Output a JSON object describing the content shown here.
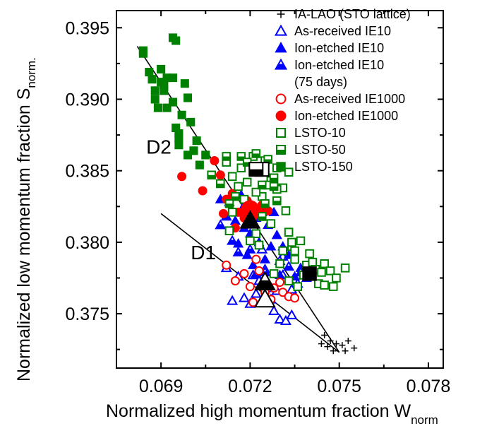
{
  "chart_data": {
    "type": "scatter",
    "xlabel": "Normalized high momentum fraction W",
    "xlabel_sub": "norm",
    "ylabel": "Normalized low momentum fraction S",
    "ylabel_sub": "norm.",
    "xlim": [
      0.0675,
      0.0785
    ],
    "ylim": [
      0.3712,
      0.3962
    ],
    "xticks": [
      0.069,
      0.072,
      0.075,
      0.078
    ],
    "xtick_labels": [
      "0.069",
      "0.072",
      "0.075",
      "0.078"
    ],
    "yticks": [
      0.375,
      0.38,
      0.385,
      0.39,
      0.395
    ],
    "ytick_labels": [
      "0.375",
      "0.380",
      "0.385",
      "0.390",
      "0.395"
    ],
    "legend_position": "top-right",
    "series": [
      {
        "name": "IA-LAO (STO lattice)",
        "marker": "plus",
        "color": "#000000",
        "points": [
          [
            0.0745,
            0.3735
          ],
          [
            0.0747,
            0.3731
          ],
          [
            0.0744,
            0.3729
          ],
          [
            0.0746,
            0.3727
          ],
          [
            0.0749,
            0.3729
          ],
          [
            0.0751,
            0.3728
          ],
          [
            0.0753,
            0.3731
          ],
          [
            0.0755,
            0.3726
          ],
          [
            0.0748,
            0.3724
          ],
          [
            0.0752,
            0.3724
          ]
        ]
      },
      {
        "name": "As-received IE10",
        "marker": "triangle-open",
        "color": "#0000ff",
        "points": [
          [
            0.0716,
            0.3776
          ],
          [
            0.0718,
            0.3761
          ],
          [
            0.072,
            0.3757
          ],
          [
            0.0721,
            0.3777
          ],
          [
            0.0722,
            0.3764
          ],
          [
            0.0723,
            0.3773
          ],
          [
            0.0725,
            0.3781
          ],
          [
            0.0726,
            0.3768
          ],
          [
            0.0727,
            0.376
          ],
          [
            0.0728,
            0.3752
          ],
          [
            0.0729,
            0.3766
          ],
          [
            0.073,
            0.3746
          ],
          [
            0.0731,
            0.3777
          ],
          [
            0.0732,
            0.3745
          ],
          [
            0.0734,
            0.3767
          ],
          [
            0.0734,
            0.3749
          ],
          [
            0.0736,
            0.3771
          ],
          [
            0.0712,
            0.3782
          ],
          [
            0.0724,
            0.3795
          ],
          [
            0.0731,
            0.379
          ],
          [
            0.0714,
            0.3759
          ]
        ]
      },
      {
        "name": "Ion-etched IE10",
        "marker": "triangle-filled",
        "color": "#0000ff",
        "points": [
          [
            0.0713,
            0.3828
          ],
          [
            0.0715,
            0.3815
          ],
          [
            0.0716,
            0.3799
          ],
          [
            0.0717,
            0.3833
          ],
          [
            0.0718,
            0.381
          ],
          [
            0.0719,
            0.3791
          ],
          [
            0.072,
            0.3806
          ],
          [
            0.0722,
            0.3817
          ],
          [
            0.0723,
            0.38
          ],
          [
            0.0724,
            0.3821
          ],
          [
            0.0725,
            0.3788
          ],
          [
            0.0726,
            0.3812
          ],
          [
            0.0727,
            0.3797
          ],
          [
            0.0728,
            0.3821
          ],
          [
            0.0729,
            0.3805
          ],
          [
            0.0731,
            0.3797
          ],
          [
            0.0733,
            0.3791
          ],
          [
            0.0735,
            0.3776
          ],
          [
            0.0737,
            0.3782
          ],
          [
            0.0739,
            0.3775
          ],
          [
            0.071,
            0.383
          ],
          [
            0.0721,
            0.3784
          ],
          [
            0.073,
            0.3777
          ],
          [
            0.0718,
            0.3826
          ]
        ]
      },
      {
        "name": "Ion-etched IE10 (75 days)",
        "marker": "triangle-half",
        "color": "#0000ff",
        "points": [
          [
            0.071,
            0.3812
          ],
          [
            0.0712,
            0.3818
          ],
          [
            0.0714,
            0.3801
          ],
          [
            0.0716,
            0.3793
          ],
          [
            0.072,
            0.3795
          ],
          [
            0.0722,
            0.3778
          ],
          [
            0.0725,
            0.3779
          ],
          [
            0.073,
            0.3787
          ],
          [
            0.0733,
            0.3783
          ],
          [
            0.0737,
            0.3779
          ]
        ]
      },
      {
        "name": "As-received IE1000",
        "marker": "circle-open",
        "color": "#ff0000",
        "points": [
          [
            0.0712,
            0.3784
          ],
          [
            0.0715,
            0.3773
          ],
          [
            0.0718,
            0.3778
          ],
          [
            0.072,
            0.3769
          ],
          [
            0.0721,
            0.3758
          ],
          [
            0.0722,
            0.3788
          ],
          [
            0.0723,
            0.378
          ],
          [
            0.0725,
            0.3765
          ],
          [
            0.0727,
            0.376
          ],
          [
            0.0728,
            0.3768
          ],
          [
            0.073,
            0.3772
          ],
          [
            0.0731,
            0.3765
          ],
          [
            0.0733,
            0.3762
          ],
          [
            0.0735,
            0.3761
          ]
        ]
      },
      {
        "name": "Ion-etched IE1000",
        "marker": "circle-filled",
        "color": "#ff0000",
        "points": [
          [
            0.0697,
            0.3846
          ],
          [
            0.0704,
            0.3836
          ],
          [
            0.0708,
            0.3857
          ],
          [
            0.071,
            0.3847
          ],
          [
            0.0712,
            0.383
          ],
          [
            0.0714,
            0.3834
          ],
          [
            0.0716,
            0.3821
          ],
          [
            0.0718,
            0.3817
          ],
          [
            0.0719,
            0.3829
          ],
          [
            0.0721,
            0.3818
          ],
          [
            0.0723,
            0.3821
          ],
          [
            0.0724,
            0.3826
          ],
          [
            0.0726,
            0.3822
          ],
          [
            0.0715,
            0.381
          ],
          [
            0.0711,
            0.382
          ]
        ]
      },
      {
        "name": "LSTO-10",
        "marker": "square-open",
        "color": "#008000",
        "points": [
          [
            0.0712,
            0.3856
          ],
          [
            0.0714,
            0.3821
          ],
          [
            0.0717,
            0.3852
          ],
          [
            0.0719,
            0.3842
          ],
          [
            0.0721,
            0.386
          ],
          [
            0.0723,
            0.3849
          ],
          [
            0.0725,
            0.3857
          ],
          [
            0.0727,
            0.3843
          ],
          [
            0.0729,
            0.3852
          ],
          [
            0.0731,
            0.3838
          ],
          [
            0.0732,
            0.3822
          ],
          [
            0.0733,
            0.3807
          ],
          [
            0.0734,
            0.3797
          ],
          [
            0.0735,
            0.3788
          ],
          [
            0.0737,
            0.3801
          ],
          [
            0.0738,
            0.3777
          ],
          [
            0.0739,
            0.3784
          ],
          [
            0.074,
            0.3792
          ],
          [
            0.0741,
            0.3786
          ],
          [
            0.0742,
            0.3781
          ],
          [
            0.0743,
            0.3771
          ],
          [
            0.0744,
            0.3779
          ],
          [
            0.0745,
            0.3785
          ],
          [
            0.0747,
            0.378
          ],
          [
            0.0749,
            0.3775
          ],
          [
            0.0752,
            0.3782
          ],
          [
            0.0736,
            0.3769
          ],
          [
            0.0733,
            0.3773
          ],
          [
            0.073,
            0.3785
          ],
          [
            0.0728,
            0.3778
          ],
          [
            0.0726,
            0.384
          ],
          [
            0.0724,
            0.3832
          ],
          [
            0.0716,
            0.3839
          ],
          [
            0.0713,
            0.3808
          ],
          [
            0.0718,
            0.383
          ],
          [
            0.0722,
            0.3806
          ],
          [
            0.0727,
            0.3813
          ],
          [
            0.0731,
            0.3794
          ],
          [
            0.0734,
            0.38
          ],
          [
            0.0735,
            0.3794
          ],
          [
            0.0745,
            0.377
          ],
          [
            0.0748,
            0.3769
          ],
          [
            0.0714,
            0.3846
          ],
          [
            0.0722,
            0.3835
          ],
          [
            0.0729,
            0.3837
          ],
          [
            0.0733,
            0.3849
          ],
          [
            0.0723,
            0.3798
          ],
          [
            0.072,
            0.3801
          ]
        ]
      },
      {
        "name": "LSTO-50",
        "marker": "square-half",
        "color": "#008000",
        "points": [
          [
            0.0707,
            0.3847
          ],
          [
            0.071,
            0.3841
          ],
          [
            0.0712,
            0.386
          ],
          [
            0.0715,
            0.3832
          ],
          [
            0.0717,
            0.386
          ],
          [
            0.0719,
            0.3856
          ],
          [
            0.0721,
            0.385
          ],
          [
            0.0722,
            0.3862
          ],
          [
            0.0724,
            0.384
          ],
          [
            0.0726,
            0.3858
          ],
          [
            0.0728,
            0.3845
          ],
          [
            0.0725,
            0.3827
          ],
          [
            0.0713,
            0.3827
          ],
          [
            0.0729,
            0.3829
          ],
          [
            0.0724,
            0.3818
          ],
          [
            0.0728,
            0.3839
          ]
        ]
      },
      {
        "name": "LSTO-150",
        "marker": "square-filled",
        "color": "#008000",
        "points": [
          [
            0.0684,
            0.3934
          ],
          [
            0.0684,
            0.3932
          ],
          [
            0.0686,
            0.3919
          ],
          [
            0.0687,
            0.3914
          ],
          [
            0.0688,
            0.3906
          ],
          [
            0.0689,
            0.3894
          ],
          [
            0.069,
            0.3912
          ],
          [
            0.0691,
            0.3906
          ],
          [
            0.0692,
            0.3894
          ],
          [
            0.0692,
            0.3915
          ],
          [
            0.0694,
            0.3915
          ],
          [
            0.0694,
            0.3943
          ],
          [
            0.0695,
            0.3941
          ],
          [
            0.0695,
            0.388
          ],
          [
            0.0696,
            0.3873
          ],
          [
            0.0696,
            0.3868
          ],
          [
            0.0697,
            0.3889
          ],
          [
            0.0698,
            0.3911
          ],
          [
            0.0699,
            0.3901
          ],
          [
            0.07,
            0.3884
          ],
          [
            0.0702,
            0.3871
          ],
          [
            0.0703,
            0.3854
          ],
          [
            0.0705,
            0.3861
          ],
          [
            0.0701,
            0.3864
          ],
          [
            0.0699,
            0.3861
          ],
          [
            0.0696,
            0.3876
          ],
          [
            0.069,
            0.3921
          ],
          [
            0.0694,
            0.3898
          ],
          [
            0.0688,
            0.39
          ],
          [
            0.0691,
            0.391
          ]
        ]
      }
    ],
    "large_markers": [
      {
        "series": "LSTO-10",
        "marker": "square-open",
        "point": [
          0.0724,
          0.3851
        ]
      },
      {
        "series": "LSTO-50",
        "marker": "square-half",
        "point": [
          0.0722,
          0.3851
        ]
      },
      {
        "series": "LSTO-150",
        "marker": "square-filled",
        "point": [
          0.074,
          0.3778
        ]
      },
      {
        "series": "Ion-etched IE1000",
        "marker": "circle-filled",
        "point": [
          0.072,
          0.3823
        ]
      },
      {
        "series": "Ion-etched IE10",
        "marker": "triangle-filled",
        "point": [
          0.072,
          0.3815
        ]
      },
      {
        "series": "Ion-etched IE10 (75 days)",
        "marker": "triangle-half",
        "point": [
          0.0725,
          0.3772
        ]
      },
      {
        "series": "As-received IE10",
        "marker": "triangle-open",
        "point": [
          0.0725,
          0.376
        ]
      }
    ],
    "lines": [
      {
        "label": "D2",
        "from": [
          0.0682,
          0.3937
        ],
        "to": [
          0.075,
          0.3723
        ]
      },
      {
        "label": "D1",
        "from": [
          0.069,
          0.382
        ],
        "to": [
          0.075,
          0.3723
        ]
      }
    ],
    "region_labels": [
      {
        "text": "D2",
        "at": [
          0.0685,
          0.3862
        ]
      },
      {
        "text": "D1",
        "at": [
          0.07,
          0.3788
        ]
      }
    ],
    "legend": [
      {
        "marker": "plus",
        "color": "#000000",
        "lines": [
          "IA-LAO (STO lattice)"
        ]
      },
      {
        "marker": "triangle-open",
        "color": "#0000ff",
        "lines": [
          "As-received IE10"
        ]
      },
      {
        "marker": "triangle-filled",
        "color": "#0000ff",
        "lines": [
          "Ion-etched IE10"
        ]
      },
      {
        "marker": "triangle-half",
        "color": "#0000ff",
        "lines": [
          "Ion-etched IE10",
          "(75 days)"
        ]
      },
      {
        "marker": "circle-open",
        "color": "#ff0000",
        "lines": [
          "As-received IE1000"
        ]
      },
      {
        "marker": "circle-filled",
        "color": "#ff0000",
        "lines": [
          "Ion-etched IE1000"
        ]
      },
      {
        "marker": "square-open",
        "color": "#008000",
        "lines": [
          "LSTO-10"
        ]
      },
      {
        "marker": "square-half",
        "color": "#008000",
        "lines": [
          "LSTO-50"
        ]
      },
      {
        "marker": "square-filled",
        "color": "#008000",
        "lines": [
          "LSTO-150"
        ]
      }
    ]
  }
}
